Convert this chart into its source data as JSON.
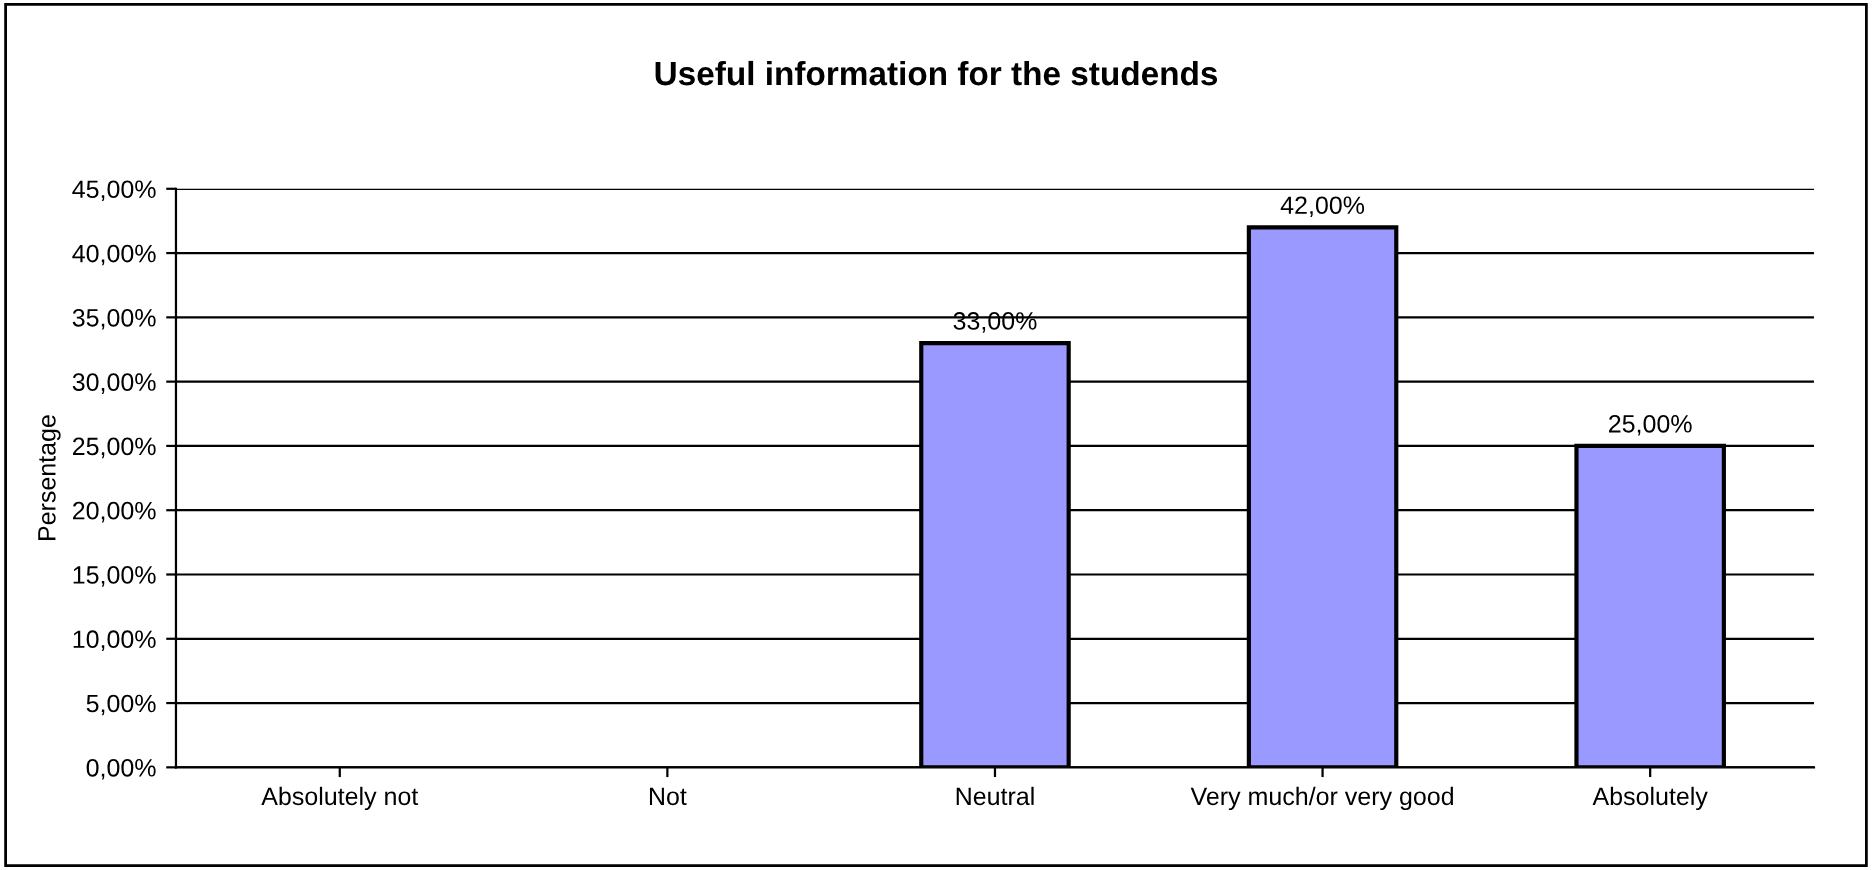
{
  "chart_data": {
    "type": "bar",
    "title": "Useful information for the studends",
    "ylabel": "Persentage",
    "categories": [
      "Absolutely not",
      "Not",
      "Neutral",
      "Very much/or very good",
      "Absolutely"
    ],
    "values": [
      0,
      0,
      33,
      42,
      25
    ],
    "color": "#9999ff",
    "value_labels": [
      null,
      null,
      "33,00%",
      "42,00%",
      "25,00%"
    ],
    "ylim": [
      0,
      45
    ],
    "yticks": [
      {
        "value": 0,
        "label": "0,00%"
      },
      {
        "value": 5,
        "label": "5,00%"
      },
      {
        "value": 10,
        "label": "10,00%"
      },
      {
        "value": 15,
        "label": "15,00%"
      },
      {
        "value": 20,
        "label": "20,00%"
      },
      {
        "value": 25,
        "label": "25,00%"
      },
      {
        "value": 30,
        "label": "30,00%"
      },
      {
        "value": 35,
        "label": "35,00%"
      },
      {
        "value": 40,
        "label": "40,00%"
      },
      {
        "value": 45,
        "label": "45,00%"
      }
    ],
    "grid": "y",
    "legend": false
  }
}
